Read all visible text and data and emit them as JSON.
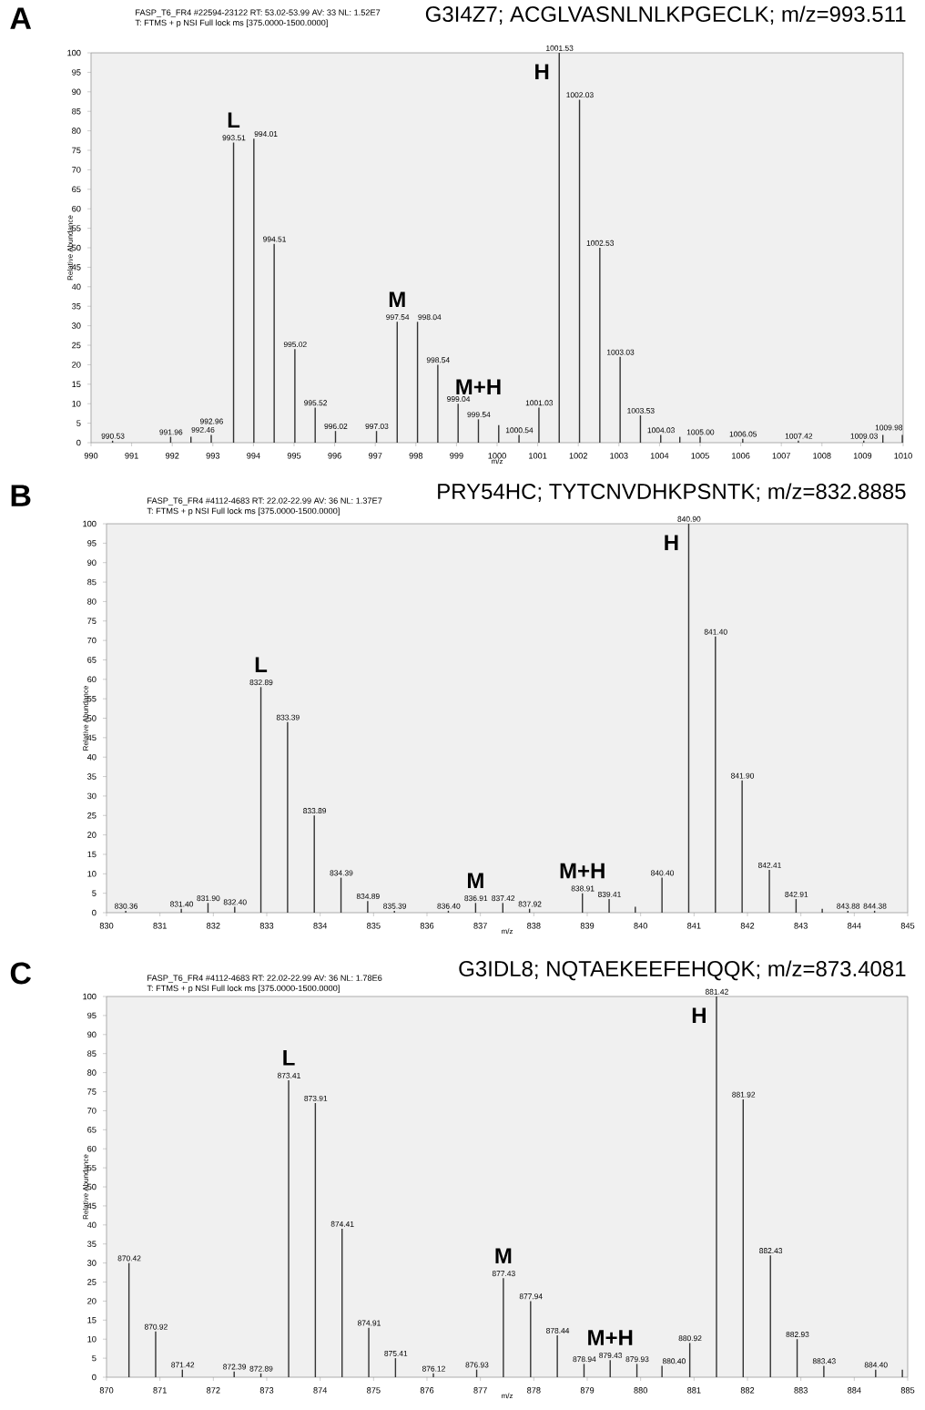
{
  "chart_data": [
    {
      "type": "bar",
      "title": "G3I4Z7; ACGLVASNLNLKPGECLK; m/z=993.511",
      "subtitle": "FASP_T6_FR4 #22594-23122  RT: 53.02-53.99  AV: 33  NL: 1.52E7",
      "xlabel": "m/z",
      "ylabel": "Relative Abundance",
      "color": "#333333",
      "x": [
        990.53,
        991.96,
        992.46,
        992.96,
        993.51,
        994.01,
        994.51,
        995.02,
        995.52,
        996.02,
        997.03,
        997.54,
        998.04,
        998.54,
        999.04,
        999.54,
        1000.04,
        1000.54,
        1001.03,
        1001.53,
        1002.03,
        1002.53,
        1003.03,
        1003.53,
        1004.03,
        1004.5,
        1005.0,
        1006.05,
        1007.42,
        1009.03,
        1009.5,
        1009.98
      ],
      "values": [
        0.5,
        1.5,
        1.5,
        2,
        77,
        78,
        51,
        24,
        9,
        3,
        3,
        31,
        31,
        20,
        10,
        6,
        4.5,
        2,
        9,
        100,
        88,
        50,
        22,
        7,
        2,
        1.5,
        1.5,
        1,
        0.5,
        0.5,
        2,
        2
      ],
      "xlim": [
        990,
        1010
      ],
      "xticks": [
        990,
        991,
        992,
        993,
        994,
        995,
        996,
        997,
        998,
        999,
        1000,
        1001,
        1002,
        1003,
        1004,
        1005,
        1006,
        1007,
        1008,
        1009,
        1010
      ],
      "ylim": [
        0,
        100
      ],
      "yticks": [
        0,
        5,
        10,
        15,
        20,
        25,
        30,
        35,
        40,
        45,
        50,
        55,
        60,
        65,
        70,
        75,
        80,
        85,
        90,
        95,
        100
      ],
      "annotations": [
        "A",
        "T: FTMS + p NSI Full lock ms [375.0000-1500.0000]",
        {
          "text": "L",
          "x": 993.51,
          "y": 77
        },
        {
          "text": "M",
          "x": 997.54,
          "y": 31
        },
        {
          "text": "M+H",
          "x": 999.54,
          "y": 6
        },
        {
          "text": "H",
          "x": 1001.53,
          "y": 100
        },
        {
          "text": "990.53",
          "x": 990.53,
          "y": 0.5
        },
        {
          "text": "991.96",
          "x": 991.96,
          "y": 1.5
        },
        {
          "text": "992.46",
          "x": 992.46,
          "y": 1.5
        },
        {
          "text": "992.96",
          "x": 992.96,
          "y": 2
        },
        {
          "text": "993.51",
          "x": 993.51,
          "y": 77
        },
        {
          "text": "994.01",
          "x": 994.01,
          "y": 78
        },
        {
          "text": "994.51",
          "x": 994.51,
          "y": 51
        },
        {
          "text": "995.02",
          "x": 995.02,
          "y": 24
        },
        {
          "text": "995.52",
          "x": 995.52,
          "y": 9
        },
        {
          "text": "996.02",
          "x": 996.02,
          "y": 3
        },
        {
          "text": "997.03",
          "x": 997.03,
          "y": 3
        },
        {
          "text": "997.54",
          "x": 997.54,
          "y": 31
        },
        {
          "text": "998.04",
          "x": 998.04,
          "y": 31
        },
        {
          "text": "998.54",
          "x": 998.54,
          "y": 20
        },
        {
          "text": "999.04",
          "x": 999.04,
          "y": 10
        },
        {
          "text": "999.54",
          "x": 999.54,
          "y": 6
        },
        {
          "text": "1000.54",
          "x": 1000.54,
          "y": 2
        },
        {
          "text": "1001.03",
          "x": 1001.03,
          "y": 9
        },
        {
          "text": "1001.53",
          "x": 1001.53,
          "y": 100
        },
        {
          "text": "1002.03",
          "x": 1002.03,
          "y": 88
        },
        {
          "text": "1002.53",
          "x": 1002.53,
          "y": 50
        },
        {
          "text": "1003.03",
          "x": 1003.03,
          "y": 22
        },
        {
          "text": "1003.53",
          "x": 1003.53,
          "y": 7
        },
        {
          "text": "1004.03",
          "x": 1004.03,
          "y": 2
        },
        {
          "text": "1005.00",
          "x": 1005.0,
          "y": 1.5
        },
        {
          "text": "1006.05",
          "x": 1006.05,
          "y": 1
        },
        {
          "text": "1007.42",
          "x": 1007.42,
          "y": 0.5
        },
        {
          "text": "1009.03",
          "x": 1009.03,
          "y": 0.5
        },
        {
          "text": "1009.98",
          "x": 1009.98,
          "y": 2
        }
      ]
    },
    {
      "type": "bar",
      "title": "PRY54HC; TYTCNVDHKPSNTK; m/z=832.8885",
      "subtitle": "FASP_T6_FR4 #4112-4683  RT: 22.02-22.99  AV: 36  NL: 1.37E7",
      "xlabel": "m/z",
      "ylabel": "Relative Abundance",
      "color": "#333333",
      "x": [
        830.36,
        831.4,
        831.9,
        832.4,
        832.89,
        833.39,
        833.89,
        834.39,
        834.89,
        835.39,
        836.4,
        836.91,
        837.42,
        837.92,
        838.91,
        839.41,
        839.9,
        840.4,
        840.9,
        841.4,
        841.9,
        842.41,
        842.91,
        843.4,
        843.88,
        844.38
      ],
      "values": [
        0.5,
        1,
        2.5,
        1.5,
        58,
        49,
        25,
        9,
        3,
        0.5,
        0.5,
        2.5,
        2.5,
        1,
        5,
        3.5,
        1.5,
        9,
        100,
        71,
        34,
        11,
        3.5,
        1,
        0.5,
        0.5
      ],
      "xlim": [
        830,
        845
      ],
      "xticks": [
        830,
        831,
        832,
        833,
        834,
        835,
        836,
        837,
        838,
        839,
        840,
        841,
        842,
        843,
        844,
        845
      ],
      "ylim": [
        0,
        100
      ],
      "yticks": [
        0,
        5,
        10,
        15,
        20,
        25,
        30,
        35,
        40,
        45,
        50,
        55,
        60,
        65,
        70,
        75,
        80,
        85,
        90,
        95,
        100
      ],
      "annotations": [
        "B",
        "T: FTMS + p NSI Full lock ms [375.0000-1500.0000]",
        {
          "text": "L",
          "x": 832.89,
          "y": 58
        },
        {
          "text": "M",
          "x": 836.91,
          "y": 2.5
        },
        {
          "text": "M+H",
          "x": 838.91,
          "y": 5
        },
        {
          "text": "H",
          "x": 840.9,
          "y": 100
        },
        {
          "text": "830.36",
          "x": 830.36,
          "y": 0.5
        },
        {
          "text": "831.40",
          "x": 831.4,
          "y": 1
        },
        {
          "text": "831.90",
          "x": 831.9,
          "y": 2.5
        },
        {
          "text": "832.40",
          "x": 832.4,
          "y": 1.5
        },
        {
          "text": "832.89",
          "x": 832.89,
          "y": 58
        },
        {
          "text": "833.39",
          "x": 833.39,
          "y": 49
        },
        {
          "text": "833.89",
          "x": 833.89,
          "y": 25
        },
        {
          "text": "834.39",
          "x": 834.39,
          "y": 9
        },
        {
          "text": "834.89",
          "x": 834.89,
          "y": 3
        },
        {
          "text": "835.39",
          "x": 835.39,
          "y": 0.5
        },
        {
          "text": "836.40",
          "x": 836.4,
          "y": 0.5
        },
        {
          "text": "836.91",
          "x": 836.91,
          "y": 2.5
        },
        {
          "text": "837.42",
          "x": 837.42,
          "y": 2.5
        },
        {
          "text": "837.92",
          "x": 837.92,
          "y": 1
        },
        {
          "text": "838.91",
          "x": 838.91,
          "y": 5
        },
        {
          "text": "839.41",
          "x": 839.41,
          "y": 3.5
        },
        {
          "text": "840.40",
          "x": 840.4,
          "y": 9
        },
        {
          "text": "840.90",
          "x": 840.9,
          "y": 100
        },
        {
          "text": "841.40",
          "x": 841.4,
          "y": 71
        },
        {
          "text": "841.90",
          "x": 841.9,
          "y": 34
        },
        {
          "text": "842.41",
          "x": 842.41,
          "y": 11
        },
        {
          "text": "842.91",
          "x": 842.91,
          "y": 3.5
        },
        {
          "text": "843.88",
          "x": 843.88,
          "y": 0.5
        },
        {
          "text": "844.38",
          "x": 844.38,
          "y": 0.5
        }
      ]
    },
    {
      "type": "bar",
      "title": "G3IDL8; NQTAEKEEFEHQQK; m/z=873.4081",
      "subtitle": "FASP_T6_FR4 #4112-4683  RT: 22.02-22.99  AV: 36  NL: 1.78E6",
      "xlabel": "m/z",
      "ylabel": "Relative Abundance",
      "color": "#333333",
      "x": [
        870.42,
        870.92,
        871.42,
        872.39,
        872.89,
        873.41,
        873.91,
        874.41,
        874.91,
        875.41,
        876.12,
        876.93,
        877.43,
        877.94,
        878.44,
        878.94,
        879.43,
        879.93,
        880.4,
        880.92,
        881.42,
        881.92,
        882.43,
        882.93,
        883.43,
        884.4,
        884.9
      ],
      "values": [
        30,
        12,
        2,
        1.5,
        1,
        78,
        72,
        39,
        13,
        5,
        1,
        2,
        26,
        20,
        11,
        3.5,
        4.5,
        3.5,
        3,
        9,
        100,
        73,
        32,
        10,
        3,
        2,
        2
      ],
      "xlim": [
        870,
        885
      ],
      "xticks": [
        870,
        871,
        872,
        873,
        874,
        875,
        876,
        877,
        878,
        879,
        880,
        881,
        882,
        883,
        884,
        885
      ],
      "ylim": [
        0,
        100
      ],
      "yticks": [
        0,
        5,
        10,
        15,
        20,
        25,
        30,
        35,
        40,
        45,
        50,
        55,
        60,
        65,
        70,
        75,
        80,
        85,
        90,
        95,
        100
      ],
      "annotations": [
        "C",
        "T: FTMS + p NSI Full lock ms [375.0000-1500.0000]",
        {
          "text": "L",
          "x": 873.41,
          "y": 78
        },
        {
          "text": "M",
          "x": 877.43,
          "y": 26
        },
        {
          "text": "M+H",
          "x": 879.43,
          "y": 4.5
        },
        {
          "text": "H",
          "x": 881.42,
          "y": 100
        },
        {
          "text": "870.42",
          "x": 870.42,
          "y": 30
        },
        {
          "text": "870.92",
          "x": 870.92,
          "y": 12
        },
        {
          "text": "871.42",
          "x": 871.42,
          "y": 2
        },
        {
          "text": "872.39",
          "x": 872.39,
          "y": 1.5
        },
        {
          "text": "872.89",
          "x": 872.89,
          "y": 1
        },
        {
          "text": "873.41",
          "x": 873.41,
          "y": 78
        },
        {
          "text": "873.91",
          "x": 873.91,
          "y": 72
        },
        {
          "text": "874.41",
          "x": 874.41,
          "y": 39
        },
        {
          "text": "874.91",
          "x": 874.91,
          "y": 13
        },
        {
          "text": "875.41",
          "x": 875.41,
          "y": 5
        },
        {
          "text": "876.12",
          "x": 876.12,
          "y": 1
        },
        {
          "text": "876.93",
          "x": 876.93,
          "y": 2
        },
        {
          "text": "877.43",
          "x": 877.43,
          "y": 26
        },
        {
          "text": "877.94",
          "x": 877.94,
          "y": 20
        },
        {
          "text": "878.44",
          "x": 878.44,
          "y": 11
        },
        {
          "text": "878.94",
          "x": 878.94,
          "y": 3.5
        },
        {
          "text": "879.43",
          "x": 879.43,
          "y": 4.5
        },
        {
          "text": "879.93",
          "x": 879.93,
          "y": 3.5
        },
        {
          "text": "880.40",
          "x": 880.4,
          "y": 3
        },
        {
          "text": "880.92",
          "x": 880.92,
          "y": 9
        },
        {
          "text": "881.42",
          "x": 881.42,
          "y": 100
        },
        {
          "text": "881.92",
          "x": 881.92,
          "y": 73
        },
        {
          "text": "882.43",
          "x": 882.43,
          "y": 32
        },
        {
          "text": "882.93",
          "x": 882.93,
          "y": 10
        },
        {
          "text": "883.43",
          "x": 883.43,
          "y": 3
        },
        {
          "text": "884.40",
          "x": 884.4,
          "y": 2
        }
      ]
    }
  ]
}
